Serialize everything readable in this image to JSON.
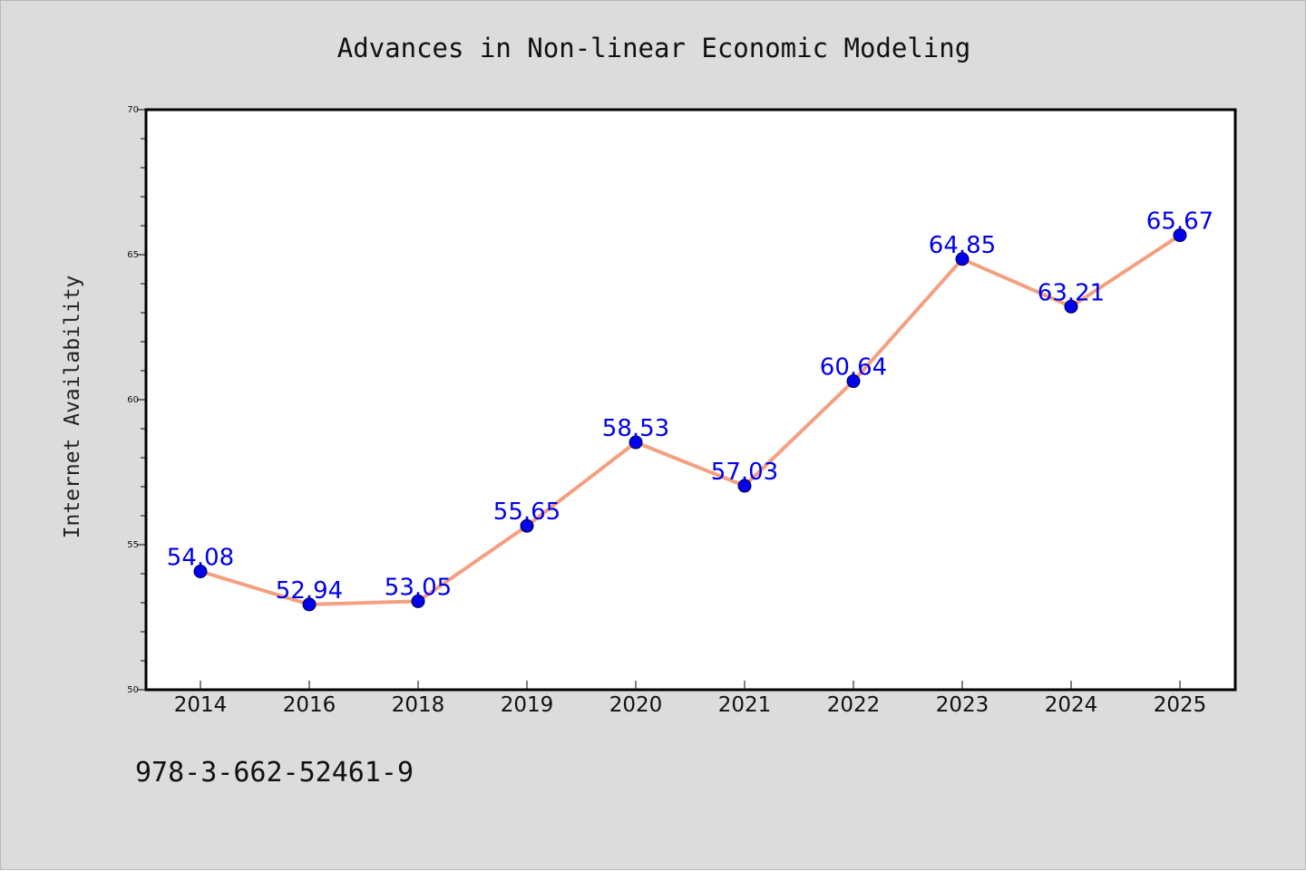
{
  "chart_data": {
    "type": "line",
    "title": "Advances in Non-linear Economic Modeling",
    "xlabel": "",
    "ylabel": "Internet Availability",
    "categories": [
      "2014",
      "2016",
      "2018",
      "2019",
      "2020",
      "2021",
      "2022",
      "2023",
      "2024",
      "2025"
    ],
    "series": [
      {
        "values": [
          54.08,
          52.94,
          53.05,
          55.65,
          58.53,
          57.03,
          60.64,
          64.85,
          63.21,
          65.67
        ],
        "data_labels": [
          "54.08",
          "52.94",
          "53.05",
          "55.65",
          "58.53",
          "57.03",
          "60.64",
          "64.85",
          "63.21",
          "65.67"
        ],
        "line_color": "#f4a080",
        "marker_color": "#0000ee",
        "label_color": "#0000ee"
      }
    ],
    "ylim": [
      50,
      70
    ],
    "yticks": [
      50,
      55,
      60,
      65,
      70
    ],
    "ytick_labels": [
      "50",
      "55",
      "60",
      "65",
      "70"
    ],
    "grid": false,
    "legend": "none"
  },
  "footnote": "978-3-662-52461-9",
  "colors": {
    "background": "#dcdcdc",
    "plot_background": "#ffffff"
  }
}
